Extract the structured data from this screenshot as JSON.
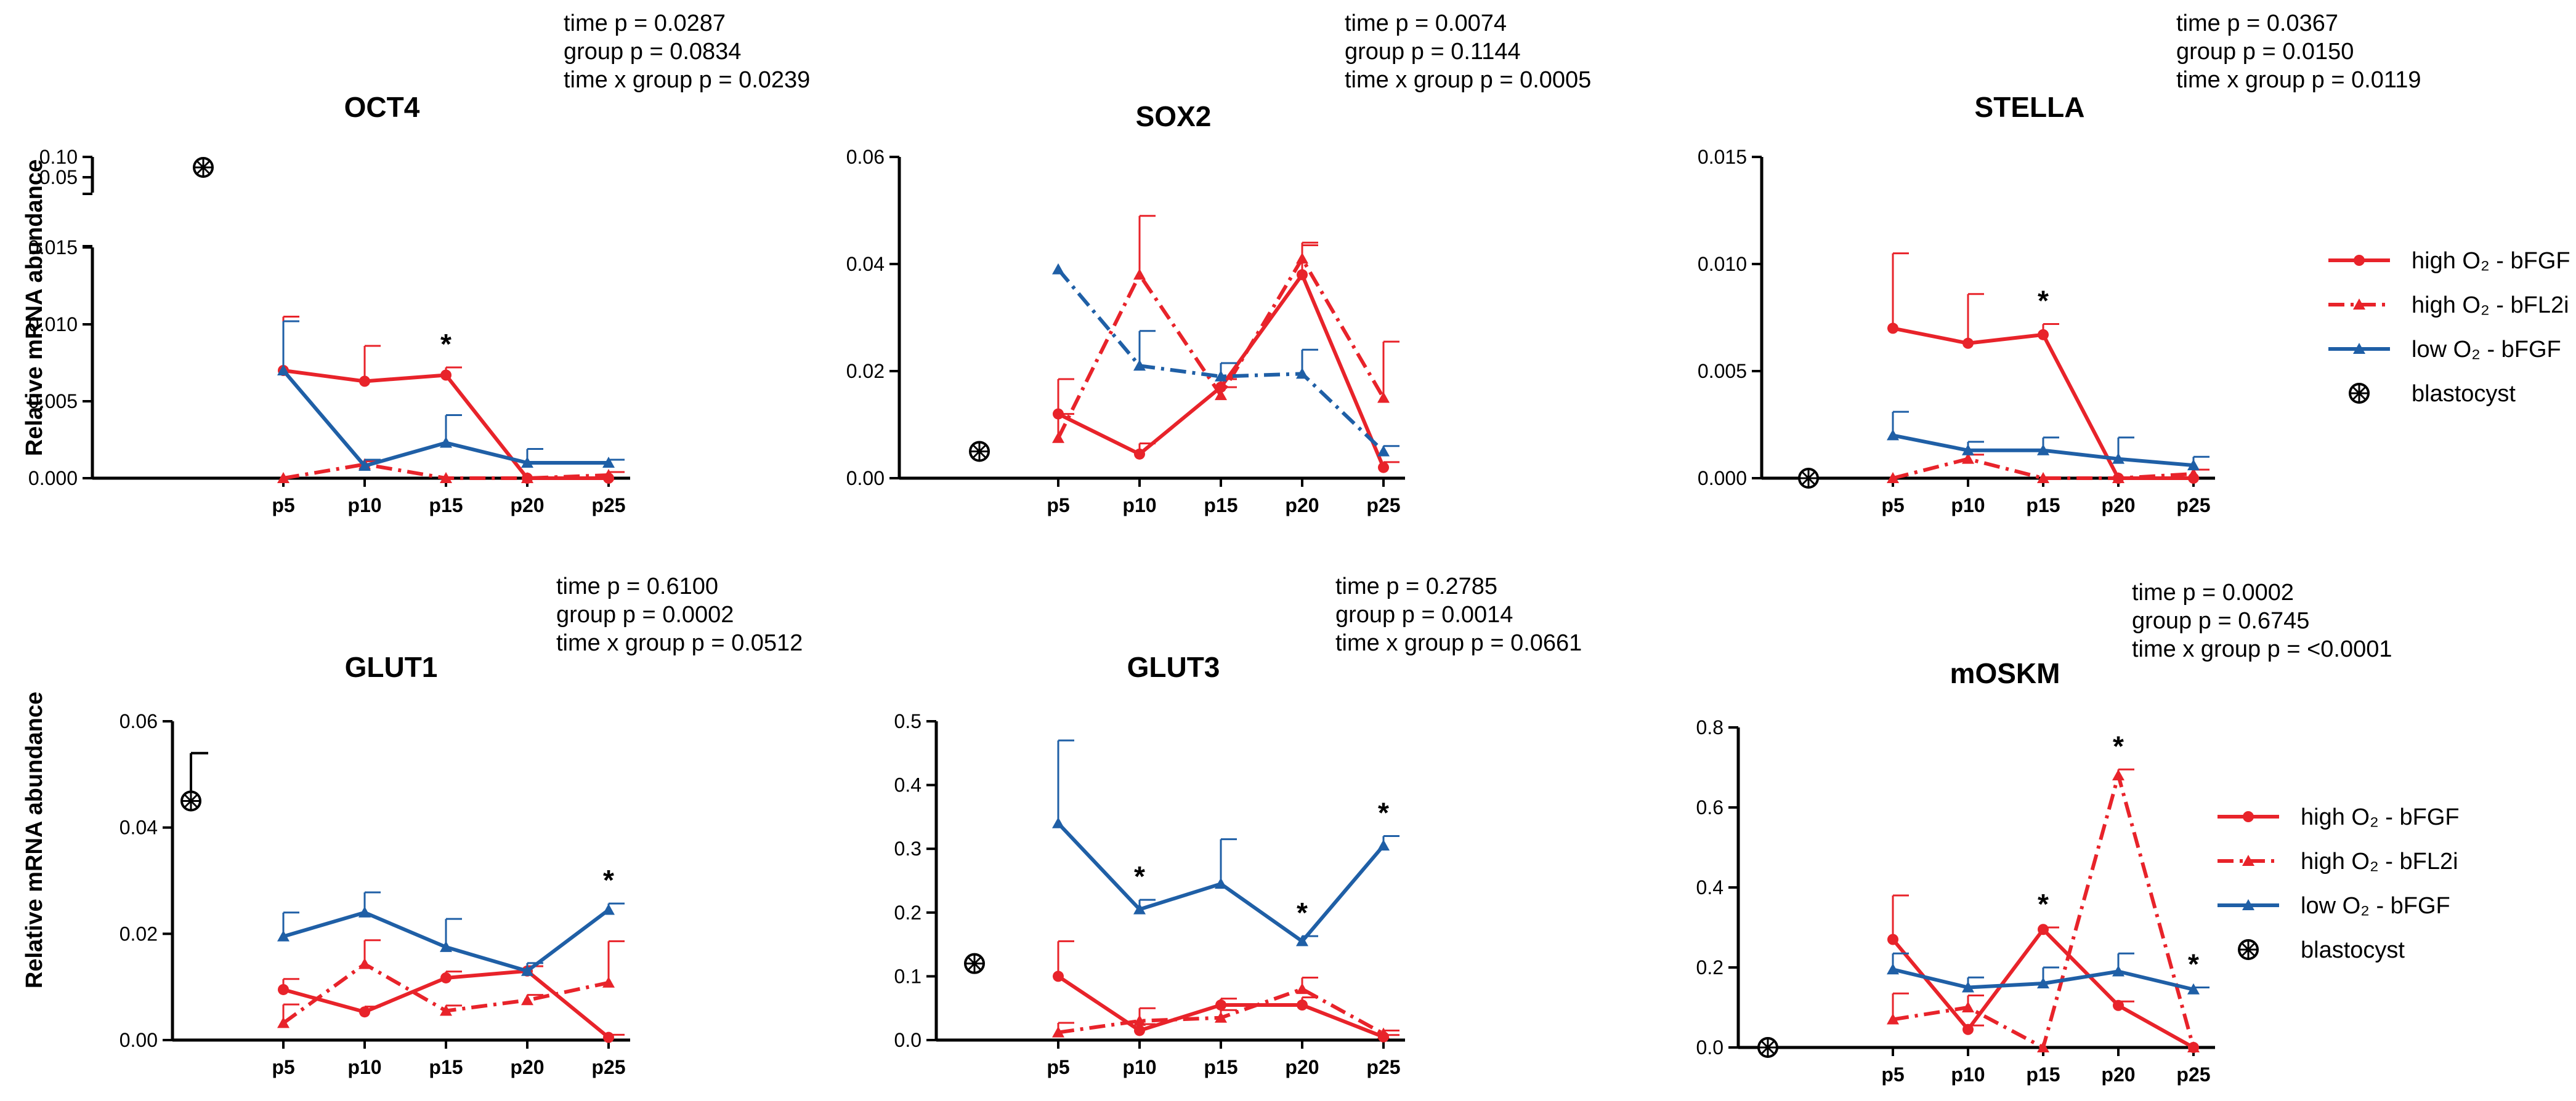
{
  "figure": {
    "y_axis_label": "Relative mRNA abundance",
    "colors": {
      "high_bfgf": "#e8232a",
      "high_bfl2i": "#e8232a",
      "low_bfgf": "#1f5fa6",
      "blastocyst": "#000000"
    }
  },
  "legends": [
    {
      "entries": [
        {
          "label": "high O₂ - bFGF",
          "series": "high_bfgf"
        },
        {
          "label": "high O₂ - bFL2i",
          "series": "high_bfl2i"
        },
        {
          "label": "low O₂ - bFGF",
          "series": "low_bfgf"
        },
        {
          "label": "blastocyst",
          "series": "blastocyst"
        }
      ]
    },
    {
      "entries": [
        {
          "label": "high O₂ - bFGF",
          "series": "high_bfgf"
        },
        {
          "label": "high O₂ - bFL2i",
          "series": "high_bfl2i"
        },
        {
          "label": "low O₂ - bFGF",
          "series": "low_bfgf"
        },
        {
          "label": "blastocyst",
          "series": "blastocyst"
        }
      ]
    }
  ],
  "chart_data": [
    {
      "type": "line",
      "title": "OCT4",
      "stats": [
        "time p = 0.0287",
        "group p = 0.0834",
        "time x group p = 0.0239"
      ],
      "ylabel": "Relative mRNA abundance",
      "xlabel": "",
      "categories": [
        "p5",
        "p10",
        "p15",
        "p20",
        "p25"
      ],
      "ylim": [
        0,
        0.015
      ],
      "yticks": [
        "0.000",
        "0.005",
        "0.010",
        "0.015"
      ],
      "broken_axis": {
        "upper_range": [
          0.02,
          0.1
        ],
        "upper_ticks": [
          "0.05",
          "0.10"
        ]
      },
      "blastocyst": {
        "value": 0.09,
        "error": 0
      },
      "series": [
        {
          "key": "high_bfgf",
          "name": "high O₂ - bFGF",
          "values": [
            0.007,
            0.0063,
            0.0067,
            0.0,
            0.0
          ],
          "errors": [
            0.0035,
            0.0023,
            0.0005,
            0,
            0
          ]
        },
        {
          "key": "high_bfl2i",
          "name": "high O₂ - bFL2i",
          "values": [
            0.0,
            0.0009,
            0.0,
            0.0,
            0.0002
          ],
          "errors": [
            0,
            0.0002,
            0,
            0,
            0.0002
          ]
        },
        {
          "key": "low_bfgf",
          "name": "low O₂ - bFGF",
          "values": [
            0.007,
            0.0008,
            0.0023,
            0.001,
            0.001
          ],
          "errors": [
            0.0032,
            0.0004,
            0.0018,
            0.0009,
            0.0002
          ]
        }
      ],
      "significance": [
        "",
        "",
        "*",
        "",
        ""
      ]
    },
    {
      "type": "line",
      "title": "SOX2",
      "stats": [
        "time p = 0.0074",
        "group p = 0.1144",
        "time x group p = 0.0005"
      ],
      "ylabel": "",
      "xlabel": "",
      "categories": [
        "p5",
        "p10",
        "p15",
        "p20",
        "p25"
      ],
      "ylim": [
        0,
        0.06
      ],
      "yticks": [
        "0.00",
        "0.02",
        "0.04",
        "0.06"
      ],
      "blastocyst": {
        "value": 0.005,
        "error": 0
      },
      "series": [
        {
          "key": "high_bfgf",
          "name": "high O₂ - bFGF",
          "values": [
            0.012,
            0.0045,
            0.017,
            0.038,
            0.002
          ],
          "errors": [
            0.0065,
            0.002,
            0.0015,
            0.0055,
            0.001
          ]
        },
        {
          "key": "high_bfl2i",
          "name": "high O₂ - bFL2i",
          "values": [
            0.0075,
            0.038,
            0.0155,
            0.041,
            0.015
          ],
          "errors": [
            0.0045,
            0.011,
            0.0015,
            0.003,
            0.0105
          ]
        },
        {
          "key": "low_bfgf",
          "name": "low O₂ - bFGF",
          "values": [
            0.039,
            0.021,
            0.019,
            0.0195,
            0.005
          ],
          "errors": [
            0,
            0.0065,
            0.0025,
            0.0045,
            0.001
          ]
        }
      ],
      "significance": [
        "",
        "",
        "",
        "",
        ""
      ]
    },
    {
      "type": "line",
      "title": "STELLA",
      "stats": [
        "time p = 0.0367",
        "group p = 0.0150",
        "time x group p = 0.0119"
      ],
      "ylabel": "",
      "xlabel": "",
      "categories": [
        "p5",
        "p10",
        "p15",
        "p20",
        "p25"
      ],
      "ylim": [
        0,
        0.015
      ],
      "yticks": [
        "0.000",
        "0.005",
        "0.010",
        "0.015"
      ],
      "blastocyst": {
        "value": 0.0,
        "error": 0
      },
      "series": [
        {
          "key": "high_bfgf",
          "name": "high O₂ - bFGF",
          "values": [
            0.007,
            0.0063,
            0.0067,
            0.0,
            0.0
          ],
          "errors": [
            0.0035,
            0.0023,
            0.0005,
            0,
            0
          ]
        },
        {
          "key": "high_bfl2i",
          "name": "high O₂ - bFL2i",
          "values": [
            0.0,
            0.0009,
            0.0,
            0.0,
            0.0002
          ],
          "errors": [
            0,
            0.0002,
            0,
            0,
            0.0002
          ]
        },
        {
          "key": "low_bfgf",
          "name": "low O₂ - bFGF",
          "values": [
            0.002,
            0.0013,
            0.0013,
            0.0009,
            0.0006
          ],
          "errors": [
            0.0011,
            0.0004,
            0.0006,
            0.001,
            0.0004
          ]
        }
      ],
      "significance": [
        "",
        "",
        "*",
        "",
        ""
      ]
    },
    {
      "type": "line",
      "title": "GLUT1",
      "stats": [
        "time p = 0.6100",
        "group p = 0.0002",
        "time x group p = 0.0512"
      ],
      "ylabel": "Relative mRNA abundance",
      "xlabel": "",
      "categories": [
        "p5",
        "p10",
        "p15",
        "p20",
        "p25"
      ],
      "ylim": [
        0,
        0.06
      ],
      "yticks": [
        "0.00",
        "0.02",
        "0.04",
        "0.06"
      ],
      "blastocyst": {
        "value": 0.045,
        "error": 0.009
      },
      "series": [
        {
          "key": "high_bfgf",
          "name": "high O₂ - bFGF",
          "values": [
            0.0095,
            0.0053,
            0.0117,
            0.013,
            0.0005
          ],
          "errors": [
            0.002,
            0.001,
            0.0012,
            0.0009,
            0.0005
          ]
        },
        {
          "key": "high_bfl2i",
          "name": "high O₂ - bFL2i",
          "values": [
            0.0032,
            0.0143,
            0.0055,
            0.0075,
            0.0108
          ],
          "errors": [
            0.0035,
            0.0045,
            0.001,
            0.001,
            0.0078
          ]
        },
        {
          "key": "low_bfgf",
          "name": "low O₂ - bFGF",
          "values": [
            0.0195,
            0.024,
            0.0175,
            0.013,
            0.0245
          ],
          "errors": [
            0.0045,
            0.0038,
            0.0053,
            0.0015,
            0.0012
          ]
        }
      ],
      "significance": [
        "",
        "",
        "",
        "",
        "*"
      ]
    },
    {
      "type": "line",
      "title": "GLUT3",
      "stats": [
        "time p = 0.2785",
        "group p = 0.0014",
        "time x group p = 0.0661"
      ],
      "ylabel": "",
      "xlabel": "",
      "categories": [
        "p5",
        "p10",
        "p15",
        "p20",
        "p25"
      ],
      "ylim": [
        0,
        0.5
      ],
      "yticks": [
        "0.0",
        "0.1",
        "0.2",
        "0.3",
        "0.4",
        "0.5"
      ],
      "blastocyst": {
        "value": 0.12,
        "error": 0
      },
      "series": [
        {
          "key": "high_bfgf",
          "name": "high O₂ - bFGF",
          "values": [
            0.1,
            0.015,
            0.055,
            0.055,
            0.005
          ],
          "errors": [
            0.055,
            0.01,
            0.01,
            0.012,
            0.003
          ]
        },
        {
          "key": "high_bfl2i",
          "name": "high O₂ - bFL2i",
          "values": [
            0.012,
            0.03,
            0.035,
            0.08,
            0.01
          ],
          "errors": [
            0.015,
            0.02,
            0.012,
            0.018,
            0.005
          ]
        },
        {
          "key": "low_bfgf",
          "name": "low O₂ - bFGF",
          "values": [
            0.34,
            0.205,
            0.245,
            0.155,
            0.305
          ],
          "errors": [
            0.13,
            0.015,
            0.07,
            0.008,
            0.015
          ]
        }
      ],
      "significance": [
        "",
        "*",
        "",
        "*",
        "*"
      ]
    },
    {
      "type": "line",
      "title": "mOSKM",
      "stats": [
        "time p = 0.0002",
        "group p = 0.6745",
        "time x group p = <0.0001"
      ],
      "ylabel": "",
      "xlabel": "",
      "categories": [
        "p5",
        "p10",
        "p15",
        "p20",
        "p25"
      ],
      "ylim": [
        0,
        0.8
      ],
      "yticks": [
        "0.0",
        "0.2",
        "0.4",
        "0.6",
        "0.8"
      ],
      "blastocyst": {
        "value": 0.0,
        "error": 0
      },
      "series": [
        {
          "key": "high_bfgf",
          "name": "high O₂ - bFGF",
          "values": [
            0.27,
            0.045,
            0.295,
            0.105,
            0.0
          ],
          "errors": [
            0.11,
            0.01,
            0.005,
            0.01,
            0
          ]
        },
        {
          "key": "high_bfl2i",
          "name": "high O₂ - bFL2i",
          "values": [
            0.07,
            0.1,
            0.0,
            0.68,
            0.0
          ],
          "errors": [
            0.065,
            0.03,
            0,
            0.015,
            0
          ]
        },
        {
          "key": "low_bfgf",
          "name": "low O₂ - bFGF",
          "values": [
            0.195,
            0.15,
            0.16,
            0.19,
            0.145
          ],
          "errors": [
            0.04,
            0.025,
            0.04,
            0.045,
            0.005
          ]
        }
      ],
      "significance": [
        "",
        "",
        "*",
        "*",
        "*"
      ]
    }
  ]
}
